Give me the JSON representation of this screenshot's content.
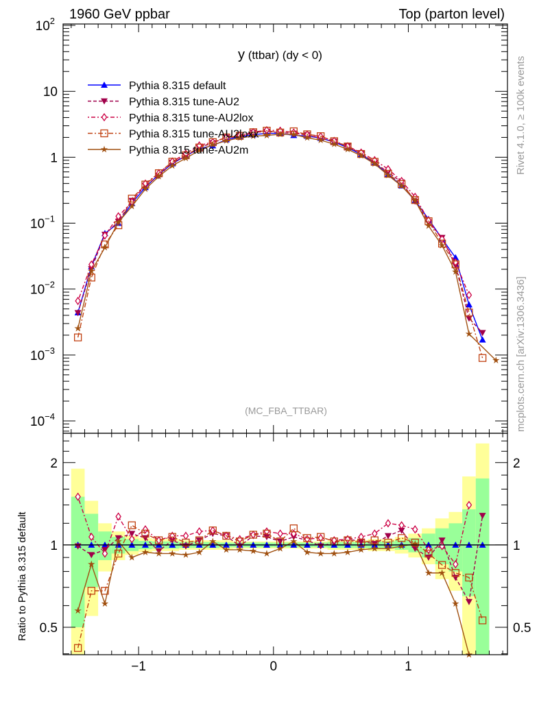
{
  "chart_data": {
    "type": "line",
    "header_left": "1960 GeV ppbar",
    "header_right": "Top (parton level)",
    "title_main": "y",
    "title_rest": " (ttbar) (dy < 0)",
    "analysis_label": "(MC_FBA_TTBAR)",
    "side_text_top": "Rivet 4.1.0, ≥ 100k events",
    "side_text_bottom": "mcplots.cern.ch [arXiv:1306.3436]",
    "ratio_ylabel": "Ratio to Pythia 8.315 default",
    "xlim": [
      -1.56,
      1.735
    ],
    "ylim": [
      6.5e-05,
      105
    ],
    "ratio_ylim": [
      0.397,
      2.56
    ],
    "yscale": "log",
    "x_ticks": [
      {
        "v": -1,
        "label": "−1"
      },
      {
        "v": 0,
        "label": "0"
      },
      {
        "v": 1,
        "label": "1"
      }
    ],
    "y_ticks": [
      {
        "exp": 2,
        "base": "10",
        "sup": "2"
      },
      {
        "exp": 1,
        "base": "10",
        "sup": ""
      },
      {
        "exp": 0,
        "base": "1",
        "sup": ""
      },
      {
        "exp": -1,
        "base": "10",
        "sup": "−1"
      },
      {
        "exp": -2,
        "base": "10",
        "sup": "−2"
      },
      {
        "exp": -3,
        "base": "10",
        "sup": "−3"
      },
      {
        "exp": -4,
        "base": "10",
        "sup": "−4"
      }
    ],
    "ratio_ticks": [
      {
        "v": 2,
        "label": "2"
      },
      {
        "v": 1,
        "label": "1"
      },
      {
        "v": 0.5,
        "label": "0.5"
      }
    ],
    "x": [
      -1.45,
      -1.35,
      -1.25,
      -1.15,
      -1.05,
      -0.95,
      -0.85,
      -0.75,
      -0.65,
      -0.55,
      -0.45,
      -0.35,
      -0.25,
      -0.15,
      -0.05,
      0.05,
      0.15,
      0.25,
      0.35,
      0.45,
      0.55,
      0.65,
      0.75,
      0.85,
      0.95,
      1.05,
      1.15,
      1.25,
      1.35,
      1.45,
      1.55,
      1.65
    ],
    "reference": {
      "name": "Pythia 8.315 default",
      "color": "#0000ff",
      "marker": "triangle-up",
      "values": [
        0.0044,
        0.022,
        0.07,
        0.1,
        0.2,
        0.35,
        0.55,
        0.8,
        1.05,
        1.35,
        1.5,
        1.85,
        2.05,
        2.2,
        2.3,
        2.3,
        2.15,
        2.1,
        1.95,
        1.7,
        1.4,
        1.1,
        0.82,
        0.55,
        0.37,
        0.22,
        0.115,
        0.058,
        0.03,
        0.0058,
        0.0017,
        null
      ]
    },
    "series": [
      {
        "name": "Pythia 8.315 tune-AU2",
        "color": "#a0004a",
        "marker": "triangle-down",
        "dash": "5,3",
        "ratio": [
          0.99,
          0.92,
          0.96,
          1.06,
          1.1,
          1.06,
          0.95,
          1.04,
          0.99,
          1.04,
          1.1,
          1.08,
          0.99,
          1.08,
          1.07,
          1.03,
          1.07,
          1.04,
          0.99,
          1.02,
          1.05,
          1.03,
          1.01,
          1.08,
          1.13,
          0.97,
          0.9,
          1.04,
          0.76,
          0.62,
          1.28,
          null
        ]
      },
      {
        "name": "Pythia 8.315 tune-AU2lox",
        "color": "#cc0044",
        "marker": "diamond",
        "dash": "2,3,6,3",
        "ratio": [
          1.5,
          1.07,
          0.93,
          1.27,
          1.05,
          1.14,
          1.04,
          1.08,
          1.08,
          1.12,
          1.13,
          1.08,
          1.05,
          1.09,
          1.12,
          1.1,
          1.1,
          1.05,
          1.06,
          1.04,
          1.05,
          1.07,
          1.1,
          1.2,
          1.18,
          1.14,
          0.96,
          0.99,
          0.85,
          1.4,
          null,
          null
        ]
      },
      {
        "name": "Pythia 8.315 tune-AU2loxx",
        "color": "#c04010",
        "marker": "square",
        "dash": "7,3,2,3",
        "ratio": [
          0.42,
          0.68,
          0.68,
          0.93,
          1.18,
          1.1,
          1.04,
          1.07,
          1.02,
          1.04,
          1.13,
          1.08,
          1.03,
          1.09,
          1.1,
          1.03,
          1.15,
          1.06,
          1.07,
          1.03,
          1.04,
          1.02,
          1.04,
          1.02,
          1.06,
          1.02,
          0.93,
          0.845,
          0.79,
          0.76,
          0.53,
          null
        ]
      },
      {
        "name": "Pythia 8.315 tune-AU2m",
        "color": "#a05010",
        "marker": "star",
        "dash": "",
        "ratio": [
          0.575,
          0.85,
          0.61,
          1.03,
          0.9,
          0.94,
          0.93,
          0.93,
          0.92,
          0.94,
          1.03,
          0.96,
          0.96,
          0.95,
          0.93,
          0.97,
          1.03,
          0.94,
          0.93,
          0.93,
          0.94,
          0.96,
          0.97,
          0.97,
          0.99,
          1.01,
          0.79,
          0.79,
          0.61,
          0.36,
          null,
          null
        ],
        "extra_main_points": [
          {
            "x": 1.65,
            "y": 0.00083
          }
        ]
      }
    ],
    "band_total_err": [
      0.9,
      0.45,
      0.2,
      0.12,
      0.08,
      0.06,
      0.05,
      0.05,
      0.04,
      0.04,
      0.04,
      0.04,
      0.03,
      0.03,
      0.03,
      0.03,
      0.03,
      0.03,
      0.03,
      0.04,
      0.04,
      0.04,
      0.05,
      0.05,
      0.07,
      0.1,
      0.15,
      0.25,
      0.32,
      0.78,
      1.35
    ],
    "band_stat_err": [
      0.5,
      0.3,
      0.12,
      0.07,
      0.05,
      0.035,
      0.03,
      0.03,
      0.025,
      0.025,
      0.025,
      0.02,
      0.02,
      0.02,
      0.02,
      0.02,
      0.02,
      0.02,
      0.02,
      0.025,
      0.025,
      0.025,
      0.03,
      0.03,
      0.04,
      0.06,
      0.1,
      0.15,
      0.2,
      0.35,
      0.75
    ],
    "band_colors": {
      "total": "#ffff99",
      "stat": "#99ff99"
    },
    "legend_position": "top-left"
  }
}
